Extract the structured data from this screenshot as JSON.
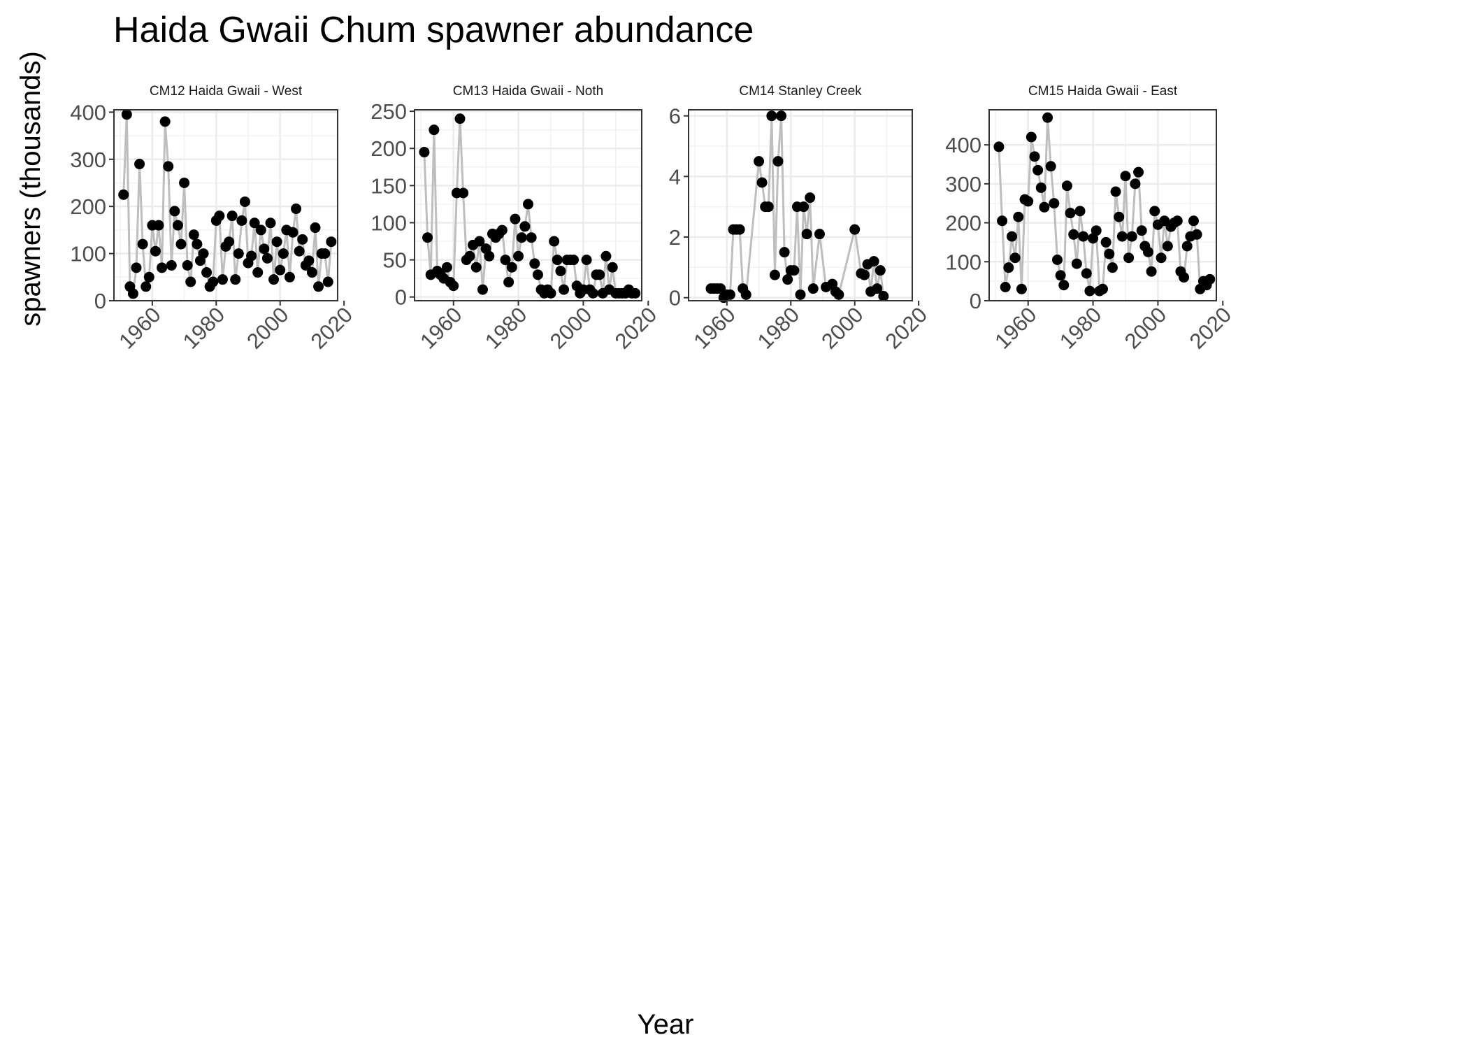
{
  "title": "Haida Gwaii Chum spawner abundance",
  "xlabel": "Year",
  "ylabel": "spawners (thousands)",
  "chart_data": [
    {
      "type": "line",
      "panel_title": "CM12 Haida Gwaii - West",
      "xlim": [
        1948,
        2018
      ],
      "ylim": [
        0,
        405
      ],
      "yticks": [
        0,
        100,
        200,
        300,
        400
      ],
      "xticks": [
        1960,
        1980,
        2000,
        2020
      ],
      "x": [
        1951,
        1952,
        1953,
        1954,
        1955,
        1956,
        1957,
        1958,
        1959,
        1960,
        1961,
        1962,
        1963,
        1964,
        1965,
        1966,
        1967,
        1968,
        1969,
        1970,
        1971,
        1972,
        1973,
        1974,
        1975,
        1976,
        1977,
        1978,
        1979,
        1980,
        1981,
        1982,
        1983,
        1984,
        1985,
        1986,
        1987,
        1988,
        1989,
        1990,
        1991,
        1992,
        1993,
        1994,
        1995,
        1996,
        1997,
        1998,
        1999,
        2000,
        2001,
        2002,
        2003,
        2004,
        2005,
        2006,
        2007,
        2008,
        2009,
        2010,
        2011,
        2012,
        2013,
        2014,
        2015,
        2016
      ],
      "y": [
        225,
        395,
        30,
        15,
        70,
        290,
        120,
        30,
        50,
        160,
        105,
        160,
        70,
        380,
        285,
        75,
        190,
        160,
        120,
        250,
        75,
        40,
        140,
        120,
        85,
        100,
        60,
        30,
        40,
        170,
        180,
        45,
        115,
        125,
        180,
        45,
        100,
        170,
        210,
        80,
        95,
        165,
        60,
        150,
        110,
        90,
        165,
        45,
        125,
        65,
        100,
        150,
        50,
        145,
        195,
        105,
        130,
        75,
        85,
        60,
        155,
        30,
        100,
        100,
        40,
        125
      ]
    },
    {
      "type": "line",
      "panel_title": "CM13 Haida Gwaii - Noth",
      "xlim": [
        1948,
        2018
      ],
      "ylim": [
        -5,
        252
      ],
      "yticks": [
        0,
        50,
        100,
        150,
        200,
        250
      ],
      "xticks": [
        1960,
        1980,
        2000,
        2020
      ],
      "x": [
        1951,
        1952,
        1953,
        1954,
        1955,
        1956,
        1957,
        1958,
        1959,
        1960,
        1961,
        1962,
        1963,
        1964,
        1965,
        1966,
        1967,
        1968,
        1969,
        1970,
        1971,
        1972,
        1973,
        1974,
        1975,
        1976,
        1977,
        1978,
        1979,
        1980,
        1981,
        1982,
        1983,
        1984,
        1985,
        1986,
        1987,
        1988,
        1989,
        1990,
        1991,
        1992,
        1993,
        1994,
        1995,
        1996,
        1997,
        1998,
        1999,
        2000,
        2001,
        2002,
        2003,
        2004,
        2005,
        2006,
        2007,
        2008,
        2009,
        2010,
        2011,
        2012,
        2013,
        2014,
        2015,
        2016
      ],
      "y": [
        195,
        80,
        30,
        225,
        35,
        30,
        25,
        40,
        20,
        15,
        140,
        240,
        140,
        50,
        55,
        70,
        40,
        75,
        10,
        65,
        55,
        85,
        80,
        85,
        90,
        50,
        20,
        40,
        105,
        55,
        80,
        95,
        125,
        80,
        45,
        30,
        10,
        5,
        10,
        5,
        75,
        50,
        35,
        10,
        50,
        50,
        50,
        15,
        5,
        10,
        50,
        10,
        5,
        30,
        30,
        5,
        55,
        10,
        40,
        5,
        5,
        5,
        5,
        10,
        5,
        5
      ]
    },
    {
      "type": "line",
      "panel_title": "CM14 Stanley Creek",
      "xlim": [
        1948,
        2018
      ],
      "ylim": [
        -0.1,
        6.2
      ],
      "yticks": [
        0,
        2,
        4,
        6
      ],
      "xticks": [
        1960,
        1980,
        2000,
        2020
      ],
      "x": [
        1955,
        1956,
        1957,
        1958,
        1959,
        1960,
        1961,
        1962,
        1963,
        1964,
        1965,
        1966,
        1970,
        1971,
        1972,
        1973,
        1974,
        1975,
        1976,
        1977,
        1978,
        1979,
        1980,
        1981,
        1982,
        1983,
        1984,
        1985,
        1986,
        1987,
        1989,
        1991,
        1993,
        1994,
        1995,
        2000,
        2002,
        2003,
        2004,
        2005,
        2006,
        2007,
        2008,
        2009
      ],
      "y": [
        0.3,
        0.3,
        0.3,
        0.3,
        0.0,
        0.1,
        0.1,
        2.25,
        2.25,
        2.25,
        0.3,
        0.1,
        4.5,
        3.8,
        3.0,
        3.0,
        6.0,
        0.75,
        4.5,
        6.0,
        1.5,
        0.6,
        0.9,
        0.9,
        3.0,
        0.1,
        3.0,
        2.1,
        3.3,
        0.3,
        2.1,
        0.35,
        0.45,
        0.2,
        0.1,
        2.25,
        0.8,
        0.75,
        1.1,
        0.2,
        1.2,
        0.3,
        0.9,
        0.05
      ]
    },
    {
      "type": "line",
      "panel_title": "CM15 Haida Gwaii - East",
      "xlim": [
        1948,
        2018
      ],
      "ylim": [
        0,
        490
      ],
      "yticks": [
        0,
        100,
        200,
        300,
        400
      ],
      "xticks": [
        1960,
        1980,
        2000,
        2020
      ],
      "x": [
        1951,
        1952,
        1953,
        1954,
        1955,
        1956,
        1957,
        1958,
        1959,
        1960,
        1961,
        1962,
        1963,
        1964,
        1965,
        1966,
        1967,
        1968,
        1969,
        1970,
        1971,
        1972,
        1973,
        1974,
        1975,
        1976,
        1977,
        1978,
        1979,
        1980,
        1981,
        1982,
        1983,
        1984,
        1985,
        1986,
        1987,
        1988,
        1989,
        1990,
        1991,
        1992,
        1993,
        1994,
        1995,
        1996,
        1997,
        1998,
        1999,
        2000,
        2001,
        2002,
        2003,
        2004,
        2005,
        2006,
        2007,
        2008,
        2009,
        2010,
        2011,
        2012,
        2013,
        2014,
        2015,
        2016
      ],
      "y": [
        395,
        205,
        35,
        85,
        165,
        110,
        215,
        30,
        260,
        255,
        420,
        370,
        335,
        290,
        240,
        470,
        345,
        250,
        105,
        65,
        40,
        295,
        225,
        170,
        95,
        230,
        165,
        70,
        25,
        160,
        180,
        25,
        30,
        150,
        120,
        85,
        280,
        215,
        165,
        320,
        110,
        165,
        300,
        330,
        180,
        140,
        125,
        75,
        230,
        195,
        110,
        205,
        140,
        190,
        200,
        205,
        75,
        60,
        140,
        165,
        205,
        170,
        30,
        50,
        40,
        55
      ]
    }
  ]
}
